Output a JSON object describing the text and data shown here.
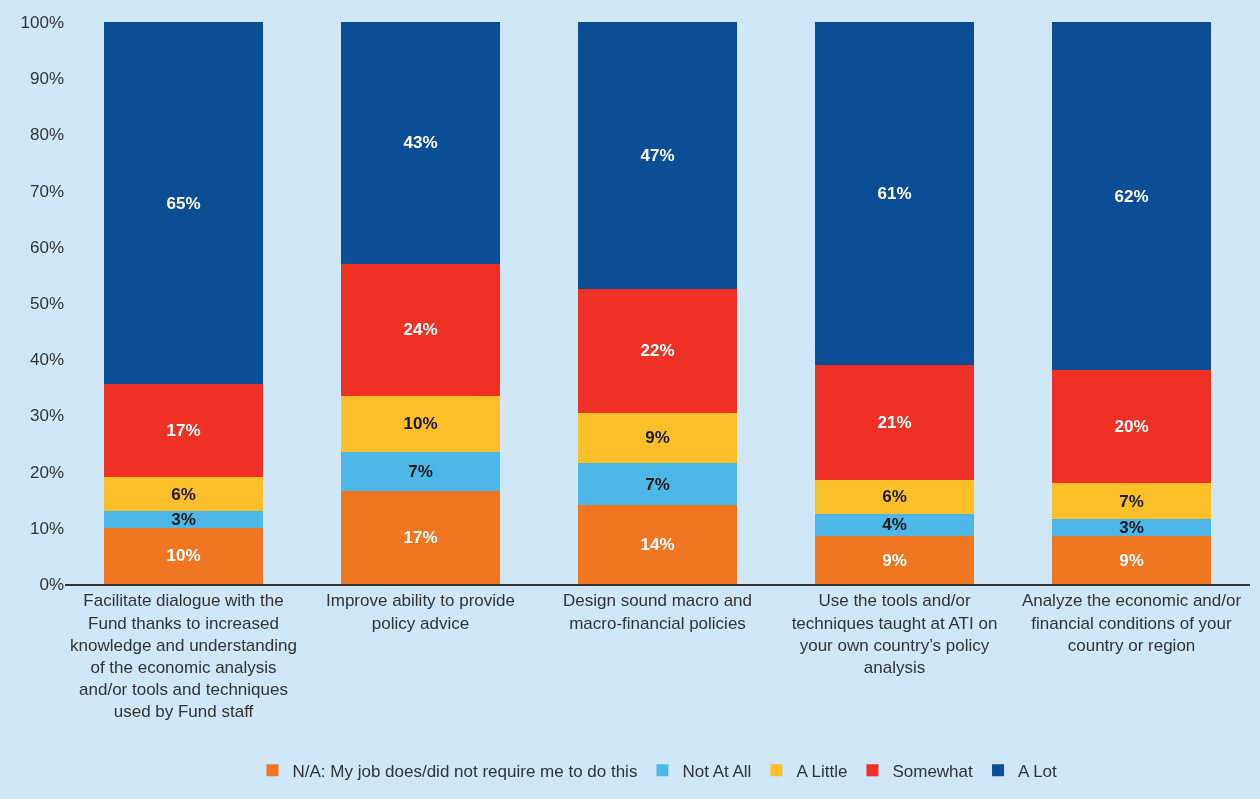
{
  "chart_data": {
    "type": "bar",
    "stacked": true,
    "categories": [
      "Facilitate dialogue with the Fund thanks to increased knowledge and understanding of the economic analysis and/or tools and techniques used by Fund staff",
      "Improve ability to provide policy advice",
      "Design sound macro and macro-financial policies",
      "Use the tools and/or techniques taught at ATI on your own country’s policy analysis",
      "Analyze the economic and/or financial conditions of your country or region"
    ],
    "series": [
      {
        "name": "N/A: My job does/did not require me to do this",
        "color": "#f07622",
        "values": [
          10,
          16.5,
          14,
          8.5,
          8.5
        ],
        "value_labels": [
          "10%",
          "17%",
          "14%",
          "9%",
          "9%"
        ]
      },
      {
        "name": "Not At All",
        "color": "#4db8e8",
        "values": [
          3,
          7,
          7.5,
          4,
          3
        ],
        "value_labels": [
          "3%",
          "7%",
          "7%",
          "4%",
          "3%"
        ]
      },
      {
        "name": "A Little",
        "color": "#fbbf2a",
        "values": [
          6,
          10,
          9,
          6,
          6.5
        ],
        "value_labels": [
          "6%",
          "10%",
          "9%",
          "6%",
          "7%"
        ]
      },
      {
        "name": "Somewhat",
        "color": "#ee3124",
        "values": [
          16.5,
          23.5,
          22,
          20.5,
          20
        ],
        "value_labels": [
          "17%",
          "24%",
          "22%",
          "21%",
          "20%"
        ]
      },
      {
        "name": "A Lot",
        "color": "#0c4e96",
        "values": [
          64.5,
          43,
          47.5,
          61,
          62
        ],
        "value_labels": [
          "65%",
          "43%",
          "47%",
          "61%",
          "62%"
        ]
      }
    ],
    "ylim": [
      0,
      100
    ],
    "yticks": [
      {
        "value": 0,
        "label": "0%"
      },
      {
        "value": 10,
        "label": "10%"
      },
      {
        "value": 20,
        "label": "20%"
      },
      {
        "value": 30,
        "label": "30%"
      },
      {
        "value": 40,
        "label": "40%"
      },
      {
        "value": 50,
        "label": "50%"
      },
      {
        "value": 60,
        "label": "60%"
      },
      {
        "value": 70,
        "label": "70%"
      },
      {
        "value": 80,
        "label": "80%"
      },
      {
        "value": 90,
        "label": "90%"
      },
      {
        "value": 100,
        "label": "100%"
      }
    ],
    "grid": false,
    "legend": "bottom"
  }
}
